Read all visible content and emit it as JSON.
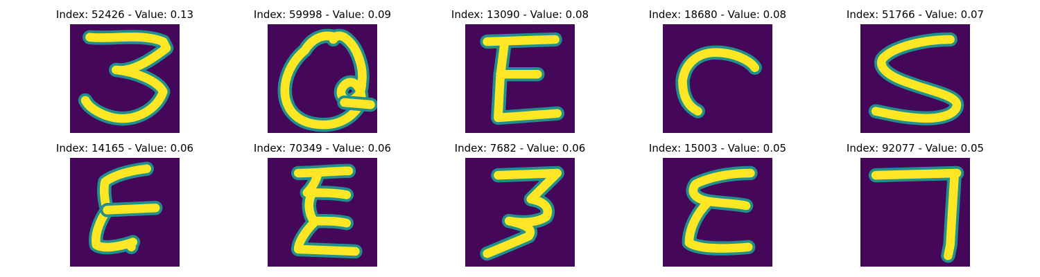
{
  "colors": {
    "background": "#45075a",
    "mid": "#21908d",
    "high": "#fde725",
    "page": "#ffffff"
  },
  "panels": [
    {
      "title": "Index: 52426 - Value: 0.13",
      "glyph": "three-curvy-glyph"
    },
    {
      "title": "Index: 59998 - Value: 0.09",
      "glyph": "loop-glyph"
    },
    {
      "title": "Index: 13090 - Value: 0.08",
      "glyph": "letter-e-glyph"
    },
    {
      "title": "Index: 18680 - Value: 0.08",
      "glyph": "hook-glyph"
    },
    {
      "title": "Index: 51766 - Value: 0.07",
      "glyph": "letter-s-glyph"
    },
    {
      "title": "Index: 14165 - Value: 0.06",
      "glyph": "letter-e-slanted-glyph"
    },
    {
      "title": "Index: 70349 - Value: 0.06",
      "glyph": "letter-e-wavy-glyph"
    },
    {
      "title": "Index: 7682 - Value: 0.06",
      "glyph": "three-angular-glyph"
    },
    {
      "title": "Index: 15003 - Value: 0.05",
      "glyph": "epsilon-glyph"
    },
    {
      "title": "Index: 92077 - Value: 0.05",
      "glyph": "seven-glyph"
    }
  ]
}
